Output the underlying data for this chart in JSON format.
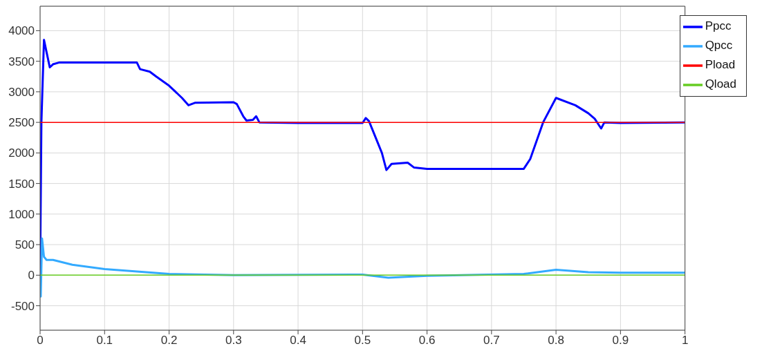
{
  "chart_data": {
    "type": "line",
    "xlim": [
      0,
      1
    ],
    "xticks": [
      0,
      0.1,
      0.2,
      0.3,
      0.4,
      0.5,
      0.6,
      0.7,
      0.8,
      0.9,
      1
    ],
    "ylim": [
      -900,
      4400
    ],
    "yticks": [
      -500,
      0,
      500,
      1000,
      1500,
      2000,
      2500,
      3000,
      3500,
      4000
    ],
    "grid": true,
    "legend": "top right",
    "marker": "none",
    "line_style": "solid",
    "series": [
      {
        "name": "Ppcc",
        "color": "#0000ff",
        "x": [
          0,
          0.002,
          0.006,
          0.01,
          0.015,
          0.02,
          0.03,
          0.05,
          0.1,
          0.15,
          0.155,
          0.17,
          0.18,
          0.2,
          0.22,
          0.23,
          0.24,
          0.3,
          0.305,
          0.315,
          0.32,
          0.33,
          0.335,
          0.34,
          0.4,
          0.5,
          0.505,
          0.51,
          0.53,
          0.537,
          0.545,
          0.57,
          0.58,
          0.6,
          0.7,
          0.75,
          0.76,
          0.775,
          0.78,
          0.8,
          0.83,
          0.85,
          0.86,
          0.87,
          0.875,
          0.9,
          1
        ],
        "values": [
          0,
          2500,
          3850,
          3650,
          3400,
          3450,
          3480,
          3480,
          3480,
          3480,
          3370,
          3330,
          3250,
          3100,
          2900,
          2780,
          2820,
          2830,
          2800,
          2600,
          2530,
          2540,
          2600,
          2500,
          2490,
          2490,
          2570,
          2520,
          2000,
          1720,
          1820,
          1840,
          1760,
          1740,
          1740,
          1740,
          1900,
          2350,
          2500,
          2900,
          2780,
          2650,
          2560,
          2400,
          2500,
          2490,
          2500
        ]
      },
      {
        "name": "Qpcc",
        "color": "#33aaff",
        "x": [
          0,
          0.001,
          0.003,
          0.006,
          0.01,
          0.02,
          0.05,
          0.1,
          0.15,
          0.2,
          0.3,
          0.5,
          0.54,
          0.6,
          0.75,
          0.8,
          0.85,
          0.9,
          1
        ],
        "values": [
          0,
          -350,
          600,
          300,
          250,
          250,
          170,
          100,
          60,
          20,
          0,
          10,
          -40,
          -10,
          20,
          90,
          50,
          40,
          40
        ]
      },
      {
        "name": "Pload",
        "color": "#ff0000",
        "x": [
          0,
          1
        ],
        "values": [
          2500,
          2500
        ]
      },
      {
        "name": "Qload",
        "color": "#66cc22",
        "x": [
          0,
          1
        ],
        "values": [
          0,
          0
        ]
      }
    ]
  }
}
